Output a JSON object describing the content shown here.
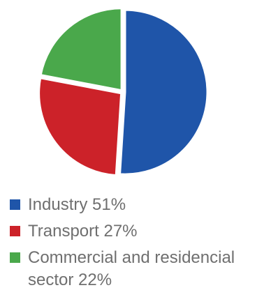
{
  "chart_data": {
    "type": "pie",
    "slices": [
      {
        "label": "Industry 51%",
        "value": 51,
        "color": "#1f55a9"
      },
      {
        "label": "Transport 27%",
        "value": 27,
        "color": "#cc2229"
      },
      {
        "label": "Commercial and residencial sector 22%",
        "value": 22,
        "color": "#4aa84b"
      }
    ],
    "title": "",
    "legend": "bottom",
    "start_angle": "12 o'clock",
    "direction": "clockwise",
    "exploded_slices": true
  }
}
